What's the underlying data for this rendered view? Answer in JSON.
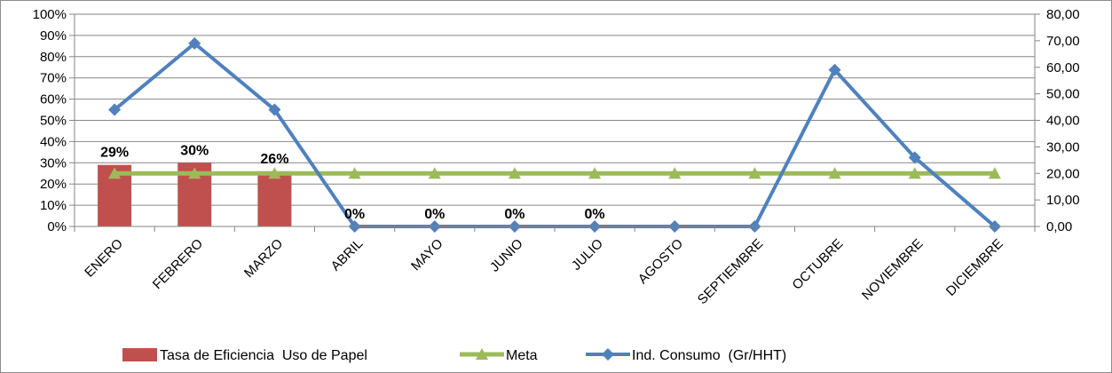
{
  "chart_data": {
    "type": "bar",
    "categories": [
      "ENERO",
      "FEBRERO",
      "MARZO",
      "ABRIL",
      "MAYO",
      "JUNIO",
      "JULIO",
      "AGOSTO",
      "SEPTIEMBRE",
      "OCTUBRE",
      "NOVIEMBRE",
      "DICIEMBRE"
    ],
    "y_left": {
      "min": 0,
      "max": 100,
      "step": 10,
      "ticks": [
        "0%",
        "10%",
        "20%",
        "30%",
        "40%",
        "50%",
        "60%",
        "70%",
        "80%",
        "90%",
        "100%"
      ]
    },
    "y_right": {
      "min": 0,
      "max": 80,
      "step": 10,
      "ticks": [
        "0,00",
        "10,00",
        "20,00",
        "30,00",
        "40,00",
        "50,00",
        "60,00",
        "70,00",
        "80,00"
      ]
    },
    "grid": true,
    "legend_position": "bottom",
    "series": [
      {
        "name": "Tasa de Eficiencia  Uso de Papel",
        "type": "bar",
        "axis": "left",
        "color": "#c0504d",
        "values": [
          29,
          30,
          26,
          0,
          0,
          0,
          0,
          null,
          null,
          null,
          null,
          null
        ],
        "labels": [
          "29%",
          "30%",
          "26%",
          "0%",
          "0%",
          "0%",
          "0%",
          "",
          "",
          "",
          "",
          ""
        ]
      },
      {
        "name": "Meta",
        "type": "line",
        "axis": "left",
        "color": "#9bbb59",
        "marker": "triangle",
        "values": [
          25,
          25,
          25,
          25,
          25,
          25,
          25,
          25,
          25,
          25,
          25,
          25
        ]
      },
      {
        "name": "Ind. Consumo  (Gr/HHT)",
        "type": "line",
        "axis": "right",
        "color": "#4f81bd",
        "marker": "diamond",
        "values": [
          44,
          69,
          44,
          0,
          0,
          0,
          0,
          0,
          0,
          59,
          26,
          0
        ]
      }
    ]
  }
}
